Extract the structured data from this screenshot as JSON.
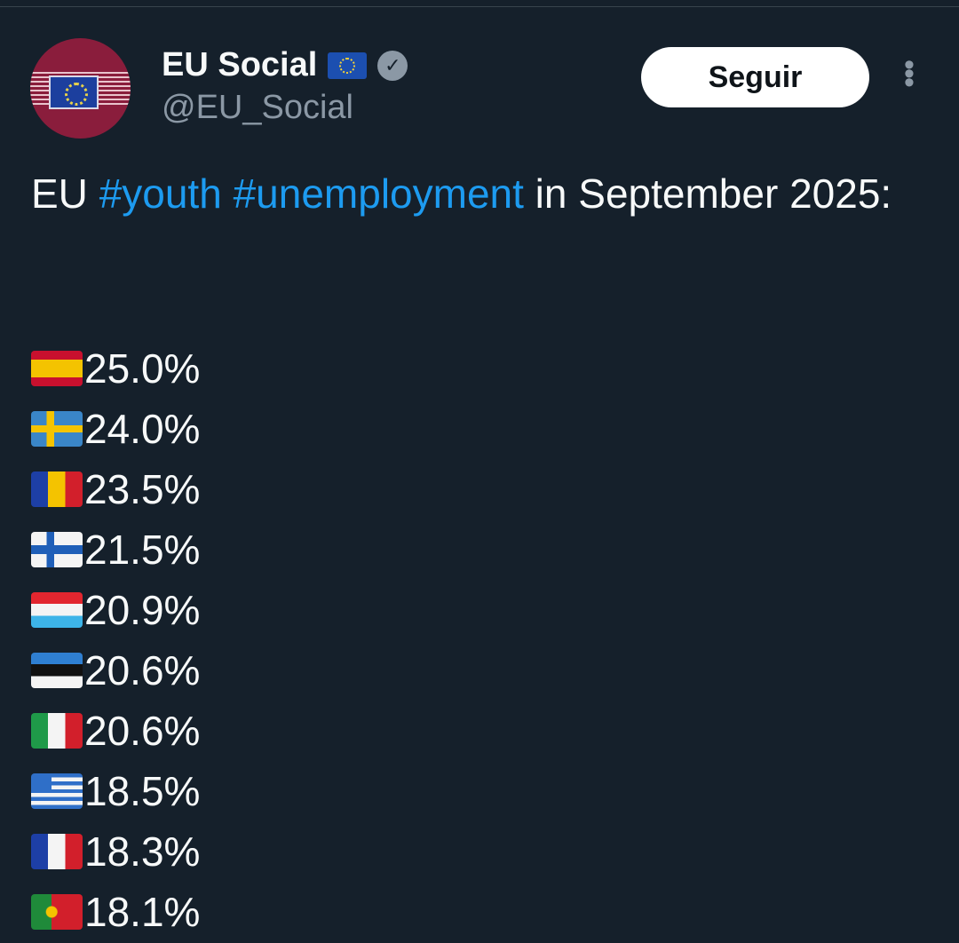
{
  "author": {
    "name": "EU Social",
    "handle": "@EU_Social",
    "name_flag_icon": "eu-flag-icon",
    "verified_icon": "verified-badge-icon"
  },
  "actions": {
    "follow_label": "Seguir",
    "more_label": "⋮"
  },
  "tweet": {
    "prefix": "EU ",
    "tags": [
      "#youth",
      "#unemployment"
    ],
    "suffix": " in September 2025:"
  },
  "rates": [
    {
      "flag": "es",
      "value": "25.0%"
    },
    {
      "flag": "se",
      "value": "24.0%"
    },
    {
      "flag": "ro",
      "value": "23.5%"
    },
    {
      "flag": "fi",
      "value": "21.5%"
    },
    {
      "flag": "lu",
      "value": "20.9%"
    },
    {
      "flag": "ee",
      "value": "20.6%"
    },
    {
      "flag": "it",
      "value": "20.6%"
    },
    {
      "flag": "gr",
      "value": "18.5%"
    },
    {
      "flag": "fr",
      "value": "18.3%"
    },
    {
      "flag": "pt",
      "value": "18.1%"
    }
  ],
  "colors": {
    "background": "#15202b",
    "link": "#1d9bf0",
    "secondary": "#8b98a5"
  }
}
